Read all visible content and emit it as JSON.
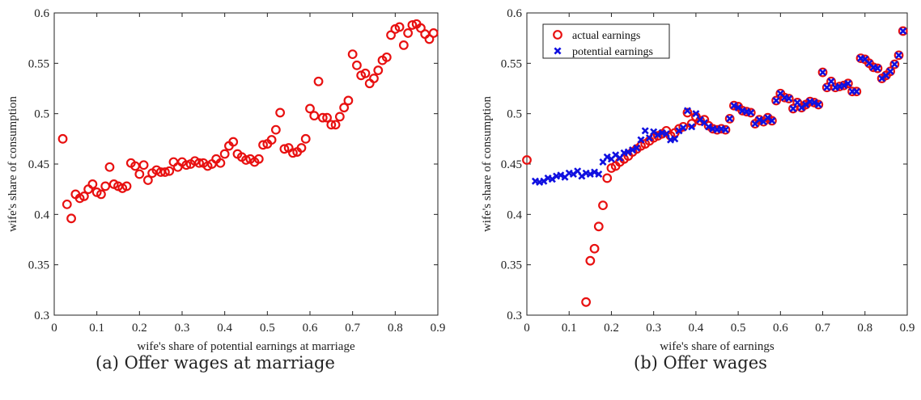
{
  "chart_data": [
    {
      "type": "scatter",
      "caption": "(a) Offer wages at marriage",
      "xlabel": "wife's share of potential earnings at marriage",
      "ylabel": "wife's share of consumption",
      "xlim": [
        0,
        0.9
      ],
      "ylim": [
        0.3,
        0.6
      ],
      "xticks": [
        "0",
        "0.1",
        "0.2",
        "0.3",
        "0.4",
        "0.5",
        "0.6",
        "0.7",
        "0.8",
        "0.9"
      ],
      "yticks": [
        "0.3",
        "0.35",
        "0.4",
        "0.45",
        "0.5",
        "0.55",
        "0.6"
      ],
      "grid": false,
      "series": [
        {
          "marker": "circle",
          "color": "#e81010",
          "points": [
            [
              0.02,
              0.475
            ],
            [
              0.03,
              0.41
            ],
            [
              0.04,
              0.396
            ],
            [
              0.05,
              0.42
            ],
            [
              0.06,
              0.416
            ],
            [
              0.07,
              0.418
            ],
            [
              0.08,
              0.425
            ],
            [
              0.09,
              0.43
            ],
            [
              0.1,
              0.422
            ],
            [
              0.11,
              0.42
            ],
            [
              0.12,
              0.428
            ],
            [
              0.13,
              0.447
            ],
            [
              0.14,
              0.43
            ],
            [
              0.15,
              0.428
            ],
            [
              0.16,
              0.426
            ],
            [
              0.17,
              0.428
            ],
            [
              0.18,
              0.451
            ],
            [
              0.19,
              0.448
            ],
            [
              0.2,
              0.44
            ],
            [
              0.21,
              0.449
            ],
            [
              0.22,
              0.434
            ],
            [
              0.23,
              0.441
            ],
            [
              0.24,
              0.444
            ],
            [
              0.25,
              0.442
            ],
            [
              0.26,
              0.442
            ],
            [
              0.27,
              0.443
            ],
            [
              0.28,
              0.452
            ],
            [
              0.29,
              0.447
            ],
            [
              0.3,
              0.452
            ],
            [
              0.31,
              0.449
            ],
            [
              0.32,
              0.45
            ],
            [
              0.33,
              0.453
            ],
            [
              0.34,
              0.451
            ],
            [
              0.35,
              0.451
            ],
            [
              0.36,
              0.448
            ],
            [
              0.37,
              0.45
            ],
            [
              0.38,
              0.455
            ],
            [
              0.39,
              0.451
            ],
            [
              0.4,
              0.46
            ],
            [
              0.41,
              0.468
            ],
            [
              0.42,
              0.472
            ],
            [
              0.43,
              0.46
            ],
            [
              0.44,
              0.457
            ],
            [
              0.45,
              0.454
            ],
            [
              0.46,
              0.455
            ],
            [
              0.47,
              0.452
            ],
            [
              0.48,
              0.455
            ],
            [
              0.49,
              0.469
            ],
            [
              0.5,
              0.47
            ],
            [
              0.51,
              0.474
            ],
            [
              0.52,
              0.484
            ],
            [
              0.53,
              0.501
            ],
            [
              0.54,
              0.465
            ],
            [
              0.55,
              0.466
            ],
            [
              0.56,
              0.461
            ],
            [
              0.57,
              0.462
            ],
            [
              0.58,
              0.466
            ],
            [
              0.59,
              0.475
            ],
            [
              0.6,
              0.505
            ],
            [
              0.61,
              0.498
            ],
            [
              0.62,
              0.532
            ],
            [
              0.63,
              0.496
            ],
            [
              0.64,
              0.496
            ],
            [
              0.65,
              0.489
            ],
            [
              0.66,
              0.489
            ],
            [
              0.67,
              0.497
            ],
            [
              0.68,
              0.506
            ],
            [
              0.69,
              0.513
            ],
            [
              0.7,
              0.559
            ],
            [
              0.71,
              0.548
            ],
            [
              0.72,
              0.538
            ],
            [
              0.73,
              0.54
            ],
            [
              0.74,
              0.53
            ],
            [
              0.75,
              0.535
            ],
            [
              0.76,
              0.543
            ],
            [
              0.77,
              0.553
            ],
            [
              0.78,
              0.556
            ],
            [
              0.79,
              0.578
            ],
            [
              0.8,
              0.584
            ],
            [
              0.81,
              0.586
            ],
            [
              0.82,
              0.568
            ],
            [
              0.83,
              0.58
            ],
            [
              0.84,
              0.588
            ],
            [
              0.85,
              0.589
            ],
            [
              0.86,
              0.585
            ],
            [
              0.87,
              0.579
            ],
            [
              0.88,
              0.574
            ],
            [
              0.89,
              0.58
            ]
          ]
        }
      ]
    },
    {
      "type": "scatter",
      "caption": "(b) Offer wages",
      "xlabel": "wife's share of earnings",
      "ylabel": "wife's share of consumption",
      "xlim": [
        0,
        0.9
      ],
      "ylim": [
        0.3,
        0.6
      ],
      "xticks": [
        "0",
        "0.1",
        "0.2",
        "0.3",
        "0.4",
        "0.5",
        "0.6",
        "0.7",
        "0.8",
        "0.9"
      ],
      "yticks": [
        "0.3",
        "0.35",
        "0.4",
        "0.45",
        "0.5",
        "0.55",
        "0.6"
      ],
      "grid": false,
      "legend_position": "top-left",
      "series": [
        {
          "name": "actual earnings",
          "marker": "circle",
          "color": "#e81010",
          "points": [
            [
              0.0,
              0.454
            ],
            [
              0.14,
              0.313
            ],
            [
              0.15,
              0.354
            ],
            [
              0.16,
              0.366
            ],
            [
              0.17,
              0.388
            ],
            [
              0.18,
              0.409
            ],
            [
              0.19,
              0.436
            ],
            [
              0.2,
              0.446
            ],
            [
              0.21,
              0.448
            ],
            [
              0.22,
              0.452
            ],
            [
              0.23,
              0.455
            ],
            [
              0.24,
              0.458
            ],
            [
              0.25,
              0.462
            ],
            [
              0.26,
              0.465
            ],
            [
              0.27,
              0.468
            ],
            [
              0.28,
              0.47
            ],
            [
              0.29,
              0.473
            ],
            [
              0.3,
              0.476
            ],
            [
              0.31,
              0.478
            ],
            [
              0.32,
              0.48
            ],
            [
              0.33,
              0.483
            ],
            [
              0.34,
              0.478
            ],
            [
              0.35,
              0.481
            ],
            [
              0.36,
              0.485
            ],
            [
              0.37,
              0.487
            ],
            [
              0.38,
              0.501
            ],
            [
              0.39,
              0.49
            ],
            [
              0.4,
              0.497
            ],
            [
              0.41,
              0.493
            ],
            [
              0.42,
              0.494
            ],
            [
              0.43,
              0.488
            ],
            [
              0.44,
              0.485
            ],
            [
              0.45,
              0.484
            ],
            [
              0.46,
              0.485
            ],
            [
              0.47,
              0.484
            ],
            [
              0.48,
              0.495
            ],
            [
              0.49,
              0.508
            ],
            [
              0.5,
              0.507
            ],
            [
              0.51,
              0.503
            ],
            [
              0.52,
              0.502
            ],
            [
              0.53,
              0.501
            ],
            [
              0.54,
              0.49
            ],
            [
              0.55,
              0.494
            ],
            [
              0.56,
              0.492
            ],
            [
              0.57,
              0.496
            ],
            [
              0.58,
              0.493
            ],
            [
              0.59,
              0.513
            ],
            [
              0.6,
              0.52
            ],
            [
              0.61,
              0.516
            ],
            [
              0.62,
              0.515
            ],
            [
              0.63,
              0.505
            ],
            [
              0.64,
              0.511
            ],
            [
              0.65,
              0.506
            ],
            [
              0.66,
              0.509
            ],
            [
              0.67,
              0.512
            ],
            [
              0.68,
              0.511
            ],
            [
              0.69,
              0.509
            ],
            [
              0.7,
              0.541
            ],
            [
              0.71,
              0.526
            ],
            [
              0.72,
              0.532
            ],
            [
              0.73,
              0.526
            ],
            [
              0.74,
              0.527
            ],
            [
              0.75,
              0.528
            ],
            [
              0.76,
              0.53
            ],
            [
              0.77,
              0.522
            ],
            [
              0.78,
              0.522
            ],
            [
              0.79,
              0.555
            ],
            [
              0.8,
              0.554
            ],
            [
              0.81,
              0.55
            ],
            [
              0.82,
              0.546
            ],
            [
              0.83,
              0.545
            ],
            [
              0.84,
              0.535
            ],
            [
              0.85,
              0.538
            ],
            [
              0.86,
              0.542
            ],
            [
              0.87,
              0.549
            ],
            [
              0.88,
              0.558
            ],
            [
              0.89,
              0.582
            ]
          ]
        },
        {
          "name": "potential earnings",
          "marker": "x",
          "color": "#1010e0",
          "points": [
            [
              0.02,
              0.433
            ],
            [
              0.03,
              0.432
            ],
            [
              0.04,
              0.433
            ],
            [
              0.05,
              0.436
            ],
            [
              0.06,
              0.435
            ],
            [
              0.07,
              0.438
            ],
            [
              0.08,
              0.439
            ],
            [
              0.09,
              0.437
            ],
            [
              0.1,
              0.441
            ],
            [
              0.11,
              0.44
            ],
            [
              0.12,
              0.443
            ],
            [
              0.13,
              0.438
            ],
            [
              0.14,
              0.441
            ],
            [
              0.15,
              0.44
            ],
            [
              0.16,
              0.442
            ],
            [
              0.17,
              0.44
            ],
            [
              0.18,
              0.452
            ],
            [
              0.19,
              0.457
            ],
            [
              0.2,
              0.455
            ],
            [
              0.21,
              0.459
            ],
            [
              0.22,
              0.456
            ],
            [
              0.23,
              0.461
            ],
            [
              0.24,
              0.462
            ],
            [
              0.25,
              0.464
            ],
            [
              0.26,
              0.466
            ],
            [
              0.27,
              0.474
            ],
            [
              0.28,
              0.483
            ],
            [
              0.29,
              0.476
            ],
            [
              0.3,
              0.482
            ],
            [
              0.31,
              0.479
            ],
            [
              0.32,
              0.481
            ],
            [
              0.33,
              0.48
            ],
            [
              0.34,
              0.474
            ],
            [
              0.35,
              0.475
            ],
            [
              0.36,
              0.483
            ],
            [
              0.37,
              0.486
            ],
            [
              0.38,
              0.503
            ],
            [
              0.39,
              0.487
            ],
            [
              0.4,
              0.5
            ],
            [
              0.41,
              0.494
            ],
            [
              0.42,
              0.491
            ],
            [
              0.43,
              0.487
            ],
            [
              0.44,
              0.485
            ],
            [
              0.45,
              0.484
            ],
            [
              0.46,
              0.485
            ],
            [
              0.47,
              0.484
            ],
            [
              0.48,
              0.495
            ],
            [
              0.49,
              0.508
            ],
            [
              0.5,
              0.506
            ],
            [
              0.51,
              0.503
            ],
            [
              0.52,
              0.502
            ],
            [
              0.53,
              0.501
            ],
            [
              0.54,
              0.49
            ],
            [
              0.55,
              0.494
            ],
            [
              0.56,
              0.492
            ],
            [
              0.57,
              0.496
            ],
            [
              0.58,
              0.493
            ],
            [
              0.59,
              0.513
            ],
            [
              0.6,
              0.52
            ],
            [
              0.61,
              0.516
            ],
            [
              0.62,
              0.515
            ],
            [
              0.63,
              0.505
            ],
            [
              0.64,
              0.511
            ],
            [
              0.65,
              0.506
            ],
            [
              0.66,
              0.509
            ],
            [
              0.67,
              0.512
            ],
            [
              0.68,
              0.511
            ],
            [
              0.69,
              0.509
            ],
            [
              0.7,
              0.541
            ],
            [
              0.71,
              0.526
            ],
            [
              0.72,
              0.532
            ],
            [
              0.73,
              0.526
            ],
            [
              0.74,
              0.527
            ],
            [
              0.75,
              0.528
            ],
            [
              0.76,
              0.53
            ],
            [
              0.77,
              0.522
            ],
            [
              0.78,
              0.522
            ],
            [
              0.79,
              0.555
            ],
            [
              0.8,
              0.554
            ],
            [
              0.81,
              0.55
            ],
            [
              0.82,
              0.546
            ],
            [
              0.83,
              0.545
            ],
            [
              0.84,
              0.535
            ],
            [
              0.85,
              0.538
            ],
            [
              0.86,
              0.542
            ],
            [
              0.87,
              0.549
            ],
            [
              0.88,
              0.558
            ],
            [
              0.89,
              0.582
            ]
          ]
        }
      ]
    }
  ]
}
